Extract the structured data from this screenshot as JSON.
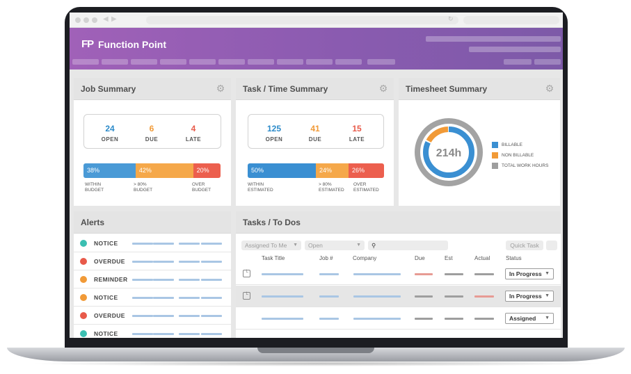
{
  "app": {
    "logo_mark": "FP",
    "name": "Function Point"
  },
  "job_summary": {
    "title": "Job Summary",
    "stats": [
      {
        "value": "24",
        "label": "OPEN",
        "color": "#2b8ac9"
      },
      {
        "value": "6",
        "label": "DUE",
        "color": "#f19a37"
      },
      {
        "value": "4",
        "label": "LATE",
        "color": "#e85a4a"
      }
    ],
    "bar": [
      {
        "pct": "38%",
        "value": 38,
        "color": "#4a9ad6",
        "label": "WITHIN BUDGET"
      },
      {
        "pct": "42%",
        "value": 42,
        "color": "#f5a84a",
        "label": "> 80% BUDGET"
      },
      {
        "pct": "20%",
        "value": 20,
        "color": "#ec5f4e",
        "label": "OVER BUDGET"
      }
    ]
  },
  "task_summary": {
    "title": "Task / Time Summary",
    "stats": [
      {
        "value": "125",
        "label": "OPEN",
        "color": "#2b8ac9"
      },
      {
        "value": "41",
        "label": "DUE",
        "color": "#f19a37"
      },
      {
        "value": "15",
        "label": "LATE",
        "color": "#e85a4a"
      }
    ],
    "bar": [
      {
        "pct": "50%",
        "value": 50,
        "color": "#3a8fd2",
        "label": "WITHIN ESTIMATED"
      },
      {
        "pct": "24%",
        "value": 24,
        "color": "#f5a84a",
        "label": "> 80% ESTIMATED"
      },
      {
        "pct": "26%",
        "value": 26,
        "color": "#ec5f4e",
        "label": "OVER ESTIMATED"
      }
    ]
  },
  "timesheet": {
    "title": "Timesheet Summary",
    "total": "214h",
    "legend": [
      {
        "label": "BILLABLE",
        "color": "#3a8fd2"
      },
      {
        "label": "NON BILLABLE",
        "color": "#f19a37"
      },
      {
        "label": "TOTAL WORK HOURS",
        "color": "#9e9e9e"
      }
    ]
  },
  "alerts": {
    "title": "Alerts",
    "items": [
      {
        "label": "NOTICE",
        "color": "#3bbfb2"
      },
      {
        "label": "OVERDUE",
        "color": "#e85a4a"
      },
      {
        "label": "REMINDER",
        "color": "#f19a37"
      },
      {
        "label": "NOTICE",
        "color": "#f19a37"
      },
      {
        "label": "OVERDUE",
        "color": "#e85a4a"
      },
      {
        "label": "NOTICE",
        "color": "#3bbfb2"
      }
    ]
  },
  "tasks": {
    "title": "Tasks / To Dos",
    "filter_assigned": "Assigned To Me",
    "filter_status": "Open",
    "quick_task": "Quick Task",
    "columns": [
      "Task Title",
      "Job #",
      "Company",
      "Due",
      "Est",
      "Actual",
      "Status"
    ],
    "rows": [
      {
        "status": "In Progress"
      },
      {
        "status": "In Progress"
      },
      {
        "status": "Assigned"
      }
    ]
  }
}
